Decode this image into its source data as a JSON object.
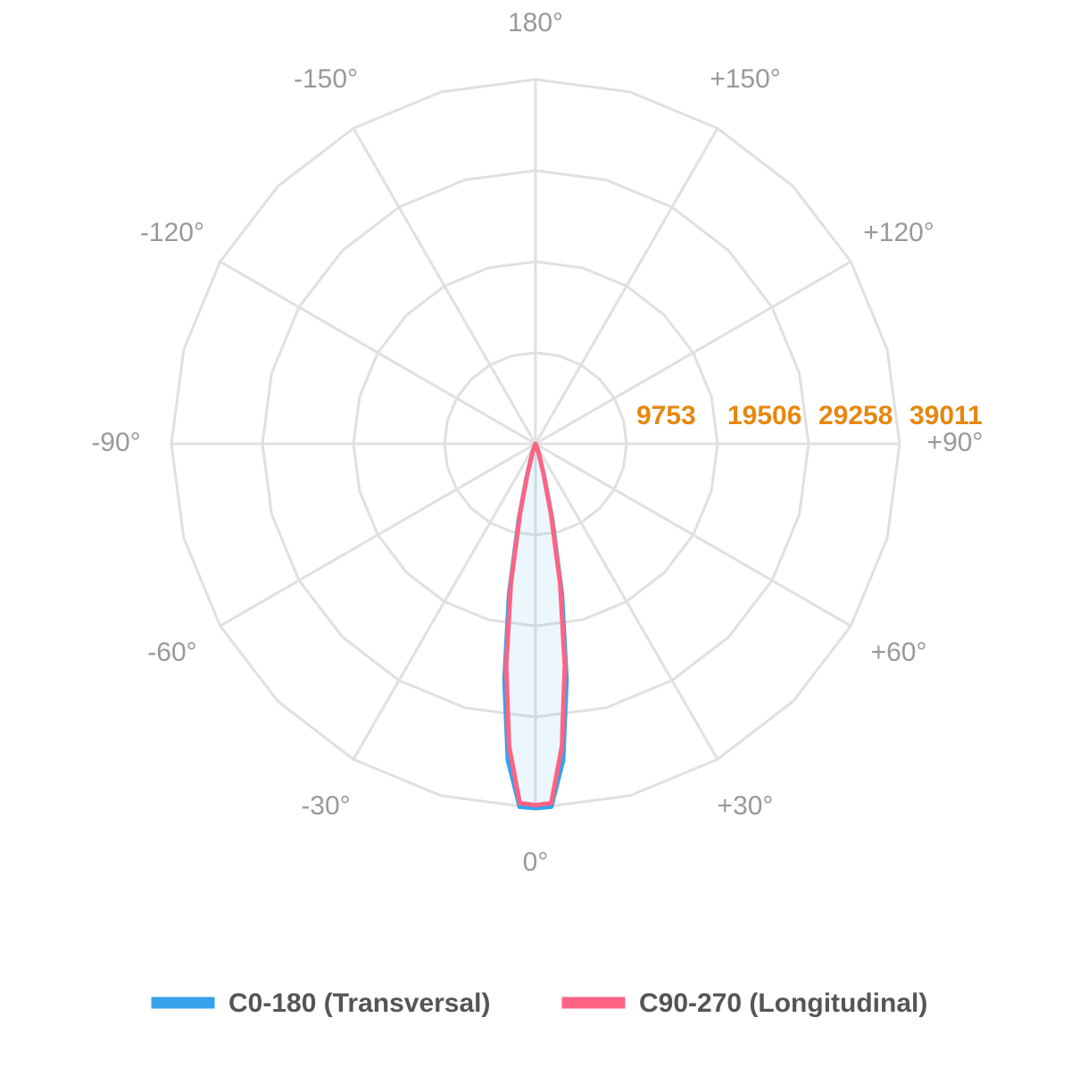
{
  "chart_data": {
    "type": "polar",
    "x": [
      -90,
      -30,
      -25,
      -20,
      -15,
      -12.5,
      -10,
      -7.5,
      -5,
      -2.5,
      0,
      2.5,
      5,
      7.5,
      10,
      12.5,
      15,
      20,
      25,
      30,
      90
    ],
    "series": [
      {
        "name": "C0-180 (Transversal)",
        "color": "#36a2eb",
        "values": [
          0,
          50,
          200,
          900,
          3600,
          8200,
          16300,
          25500,
          34000,
          38900,
          39011,
          38900,
          34000,
          25500,
          16300,
          8200,
          3600,
          900,
          200,
          50,
          0
        ]
      },
      {
        "name": "C90-270 (Longitudinal)",
        "color": "#ff6384",
        "values": [
          0,
          40,
          150,
          800,
          3300,
          7600,
          15200,
          24000,
          32500,
          38500,
          38700,
          38500,
          32500,
          24000,
          15200,
          7600,
          3300,
          800,
          150,
          40,
          0
        ]
      }
    ],
    "rlim": [
      0,
      39011
    ],
    "rticks": [
      9753,
      19506,
      29258,
      39011
    ],
    "xticks": [
      {
        "value": 180,
        "label": "180°"
      },
      {
        "value": 150,
        "label": "+150°"
      },
      {
        "value": 120,
        "label": "+120°"
      },
      {
        "value": 90,
        "label": "+90°"
      },
      {
        "value": 60,
        "label": "+60°"
      },
      {
        "value": 30,
        "label": "+30°"
      },
      {
        "value": 0,
        "label": "0°"
      },
      {
        "value": -30,
        "label": "-30°"
      },
      {
        "value": -60,
        "label": "-60°"
      },
      {
        "value": -90,
        "label": "-90°"
      },
      {
        "value": -120,
        "label": "-120°"
      },
      {
        "value": -150,
        "label": "-150°"
      }
    ],
    "grid": true
  }
}
